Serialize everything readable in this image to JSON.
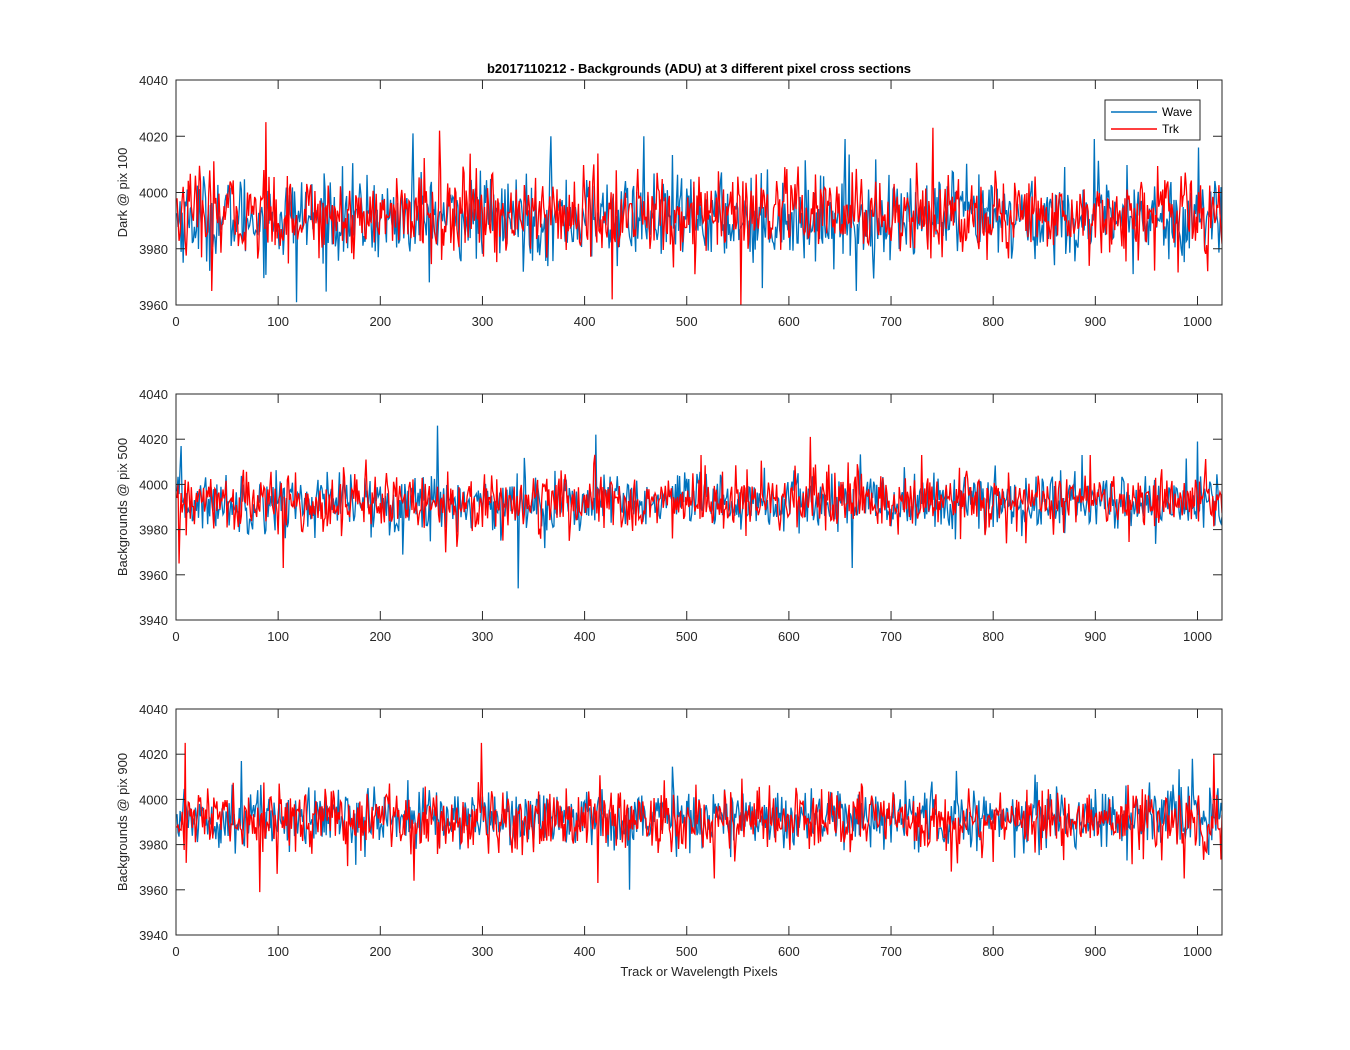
{
  "figure": {
    "title": "b2017110212 - Backgrounds (ADU) at 3 different pixel cross sections",
    "xlabel": "Track or Wavelength Pixels"
  },
  "colors": {
    "wave": "#0072BD",
    "trk": "#FF0000",
    "axis": "#262626"
  },
  "chart_data": [
    {
      "type": "line",
      "title": "b2017110212 - Backgrounds (ADU) at 3 different pixel cross sections",
      "xlabel": "",
      "ylabel": "Dark @ pix 100",
      "xlim": [
        0,
        1024
      ],
      "ylim": [
        3960,
        4040
      ],
      "xticks": [
        0,
        100,
        200,
        300,
        400,
        500,
        600,
        700,
        800,
        900,
        1000
      ],
      "yticks": [
        3960,
        3980,
        4000,
        4020,
        4040
      ],
      "grid": false,
      "legend": {
        "placement": "top-right",
        "entries": [
          "Wave",
          "Trk"
        ]
      },
      "series": [
        {
          "name": "Wave",
          "color": "#0072BD",
          "n_points": 1024,
          "x_start": 1,
          "x_end": 1024,
          "mean": 3991,
          "std": 7.5,
          "min": 3961,
          "max": 4021,
          "spikes": [
            [
              118,
              3961
            ],
            [
              232,
              4021
            ],
            [
              367,
              4020
            ],
            [
              458,
              4020
            ],
            [
              574,
              3966
            ],
            [
              655,
              4019
            ],
            [
              666,
              3965
            ],
            [
              899,
              4019
            ],
            [
              937,
              3971
            ],
            [
              1001,
              4016
            ]
          ]
        },
        {
          "name": "Trk",
          "color": "#FF0000",
          "n_points": 1024,
          "x_start": 1,
          "x_end": 1024,
          "mean": 3992,
          "std": 7.5,
          "min": 3960,
          "max": 4025,
          "spikes": [
            [
              35,
              3965
            ],
            [
              88,
              4025
            ],
            [
              258,
              4022
            ],
            [
              427,
              3962
            ],
            [
              553,
              3960
            ],
            [
              741,
              4023
            ],
            [
              1010,
              3972
            ]
          ]
        }
      ]
    },
    {
      "type": "line",
      "xlabel": "",
      "ylabel": "Backgrounds @ pix 500",
      "xlim": [
        0,
        1024
      ],
      "ylim": [
        3940,
        4040
      ],
      "xticks": [
        0,
        100,
        200,
        300,
        400,
        500,
        600,
        700,
        800,
        900,
        1000
      ],
      "yticks": [
        3940,
        3960,
        3980,
        4000,
        4020,
        4040
      ],
      "grid": false,
      "series": [
        {
          "name": "Wave",
          "color": "#0072BD",
          "n_points": 1024,
          "x_start": 1,
          "x_end": 1024,
          "mean": 3992,
          "std": 6.5,
          "min": 3954,
          "max": 4026,
          "spikes": [
            [
              5,
              4017
            ],
            [
              256,
              4026
            ],
            [
              335,
              3954
            ],
            [
              411,
              4022
            ],
            [
              662,
              3963
            ],
            [
              887,
              4013
            ],
            [
              1000,
              4019
            ]
          ]
        },
        {
          "name": "Trk",
          "color": "#FF0000",
          "n_points": 1024,
          "x_start": 1,
          "x_end": 1024,
          "mean": 3992,
          "std": 6.5,
          "min": 3963,
          "max": 4021,
          "spikes": [
            [
              3,
              3965
            ],
            [
              105,
              3963
            ],
            [
              186,
              4011
            ],
            [
              514,
              4013
            ],
            [
              621,
              4021
            ],
            [
              730,
              4013
            ],
            [
              895,
              4013
            ]
          ]
        }
      ]
    },
    {
      "type": "line",
      "xlabel": "Track or Wavelength Pixels",
      "ylabel": "Backgrounds @ pix 900",
      "xlim": [
        0,
        1024
      ],
      "ylim": [
        3940,
        4040
      ],
      "xticks": [
        0,
        100,
        200,
        300,
        400,
        500,
        600,
        700,
        800,
        900,
        1000
      ],
      "yticks": [
        3940,
        3960,
        3980,
        4000,
        4020,
        4040
      ],
      "grid": false,
      "series": [
        {
          "name": "Wave",
          "color": "#0072BD",
          "n_points": 1024,
          "x_start": 1,
          "x_end": 1024,
          "mean": 3992,
          "std": 6.5,
          "min": 3960,
          "max": 4018,
          "spikes": [
            [
              64,
              4017
            ],
            [
              444,
              3960
            ],
            [
              995,
              4018
            ]
          ]
        },
        {
          "name": "Trk",
          "color": "#FF0000",
          "n_points": 1024,
          "x_start": 1,
          "x_end": 1024,
          "mean": 3991,
          "std": 7,
          "min": 3959,
          "max": 4025,
          "spikes": [
            [
              9,
              4025
            ],
            [
              82,
              3959
            ],
            [
              233,
              3964
            ],
            [
              299,
              4025
            ],
            [
              413,
              3963
            ],
            [
              527,
              3965
            ],
            [
              987,
              3965
            ],
            [
              1016,
              4020
            ]
          ]
        }
      ]
    }
  ]
}
